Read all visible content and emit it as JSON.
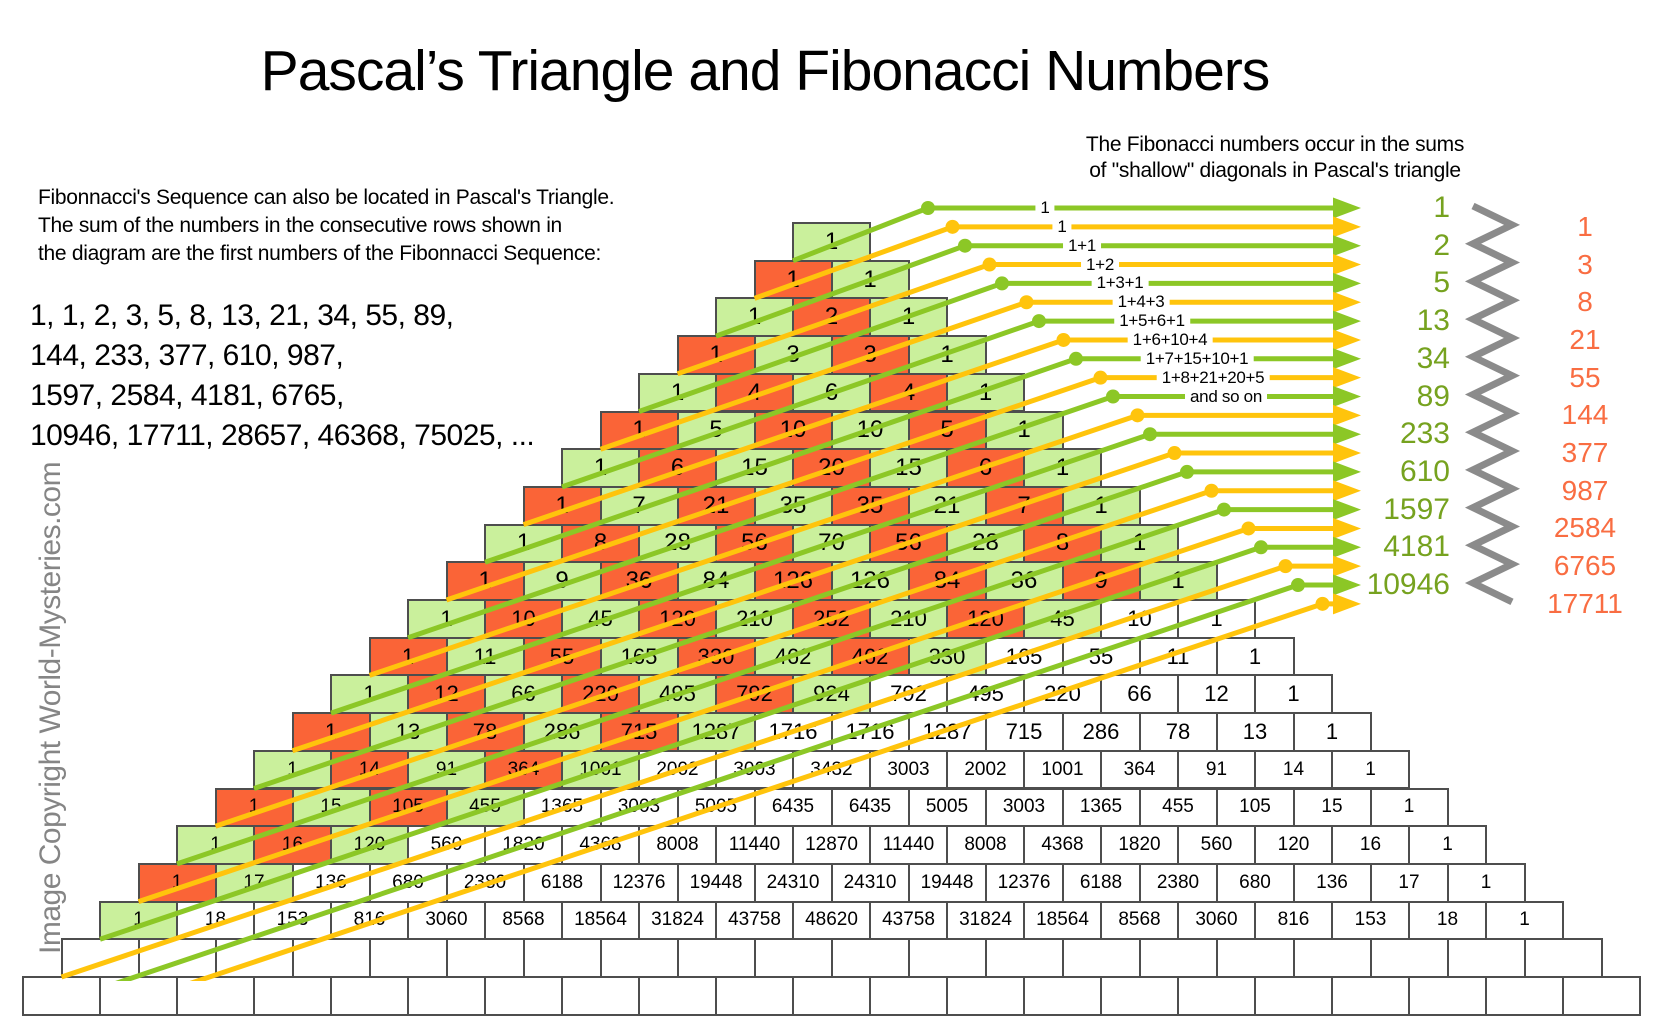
{
  "title": "Pascal’s Triangle and Fibonacci Numbers",
  "copyright": "Image Copyright World-Mysteries.com",
  "left_note": {
    "line1": "Fibonnacci's Sequence can also be located in Pascal's Triangle.",
    "line2": "The sum of the numbers in the consecutive rows shown in",
    "line3": "the diagram are the first numbers of the Fibonnacci Sequence:"
  },
  "sequence": {
    "line1": "1, 1, 2, 3, 5, 8, 13, 21, 34, 55, 89,",
    "line2": "144, 233, 377, 610, 987,",
    "line3": "1597, 2584, 4181, 6765,",
    "line4": "10946, 17711, 28657, 46368, 75025, ..."
  },
  "right_note": {
    "line1": "The Fibonacci numbers occur in the sums",
    "line2": "of \"shallow\" diagonals in Pascal's triangle"
  },
  "triangle": {
    "rows": [
      [
        1
      ],
      [
        1,
        1
      ],
      [
        1,
        2,
        1
      ],
      [
        1,
        3,
        3,
        1
      ],
      [
        1,
        4,
        6,
        4,
        1
      ],
      [
        1,
        5,
        10,
        10,
        5,
        1
      ],
      [
        1,
        6,
        15,
        20,
        15,
        6,
        1
      ],
      [
        1,
        7,
        21,
        35,
        35,
        21,
        7,
        1
      ],
      [
        1,
        8,
        28,
        56,
        70,
        56,
        28,
        8,
        1
      ],
      [
        1,
        9,
        36,
        84,
        126,
        126,
        84,
        36,
        9,
        1
      ],
      [
        1,
        10,
        45,
        120,
        210,
        252,
        210,
        120,
        45,
        10,
        1
      ],
      [
        1,
        11,
        55,
        165,
        330,
        462,
        462,
        330,
        165,
        55,
        11,
        1
      ],
      [
        1,
        12,
        66,
        220,
        495,
        792,
        924,
        792,
        495,
        220,
        66,
        12,
        1
      ],
      [
        1,
        13,
        78,
        286,
        715,
        1287,
        1716,
        1716,
        1287,
        715,
        286,
        78,
        13,
        1
      ],
      [
        1,
        14,
        91,
        364,
        1001,
        2002,
        3003,
        3432,
        3003,
        2002,
        1001,
        364,
        91,
        14,
        1
      ],
      [
        1,
        15,
        105,
        455,
        1365,
        3003,
        5005,
        6435,
        6435,
        5005,
        3003,
        1365,
        455,
        105,
        15,
        1
      ],
      [
        1,
        16,
        120,
        560,
        1820,
        4368,
        8008,
        11440,
        12870,
        11440,
        8008,
        4368,
        1820,
        560,
        120,
        16,
        1
      ],
      [
        1,
        17,
        136,
        680,
        2380,
        6188,
        12376,
        19448,
        24310,
        24310,
        19448,
        12376,
        6188,
        2380,
        680,
        136,
        17,
        1
      ],
      [
        1,
        18,
        153,
        816,
        3060,
        8568,
        18564,
        31824,
        43758,
        48620,
        43758,
        31824,
        18564,
        8568,
        3060,
        816,
        153,
        18,
        1
      ]
    ],
    "empty_row_cell_counts": [
      20,
      21
    ],
    "colored_diagonal_limit": 18
  },
  "diagonal_sum_labels": [
    "1",
    "1",
    "1+1",
    "1+2",
    "1+3+1",
    "1+4+3",
    "1+5+6+1",
    "1+6+10+4",
    "1+7+15+10+1",
    "1+8+21+20+5",
    "and so on"
  ],
  "fibonacci_green_column": [
    "1",
    "2",
    "5",
    "13",
    "34",
    "89",
    "233",
    "610",
    "1597",
    "4181",
    "10946"
  ],
  "fibonacci_orange_column": [
    "1",
    "3",
    "8",
    "21",
    "55",
    "144",
    "377",
    "987",
    "2584",
    "6765",
    "17711"
  ],
  "num_diagonal_arrows": 22,
  "colors": {
    "cell_green": "#caf09c",
    "cell_orange": "#fa6437",
    "cell_white": "#ffffff",
    "cell_border": "#4e4e4e",
    "line_green": "#8cc726",
    "line_yellow": "#ffc40c",
    "text_green": "#76a21f",
    "text_orange": "#f96d42",
    "zigzag_gray": "#8b8b8b",
    "copyright_gray": "#858585"
  }
}
